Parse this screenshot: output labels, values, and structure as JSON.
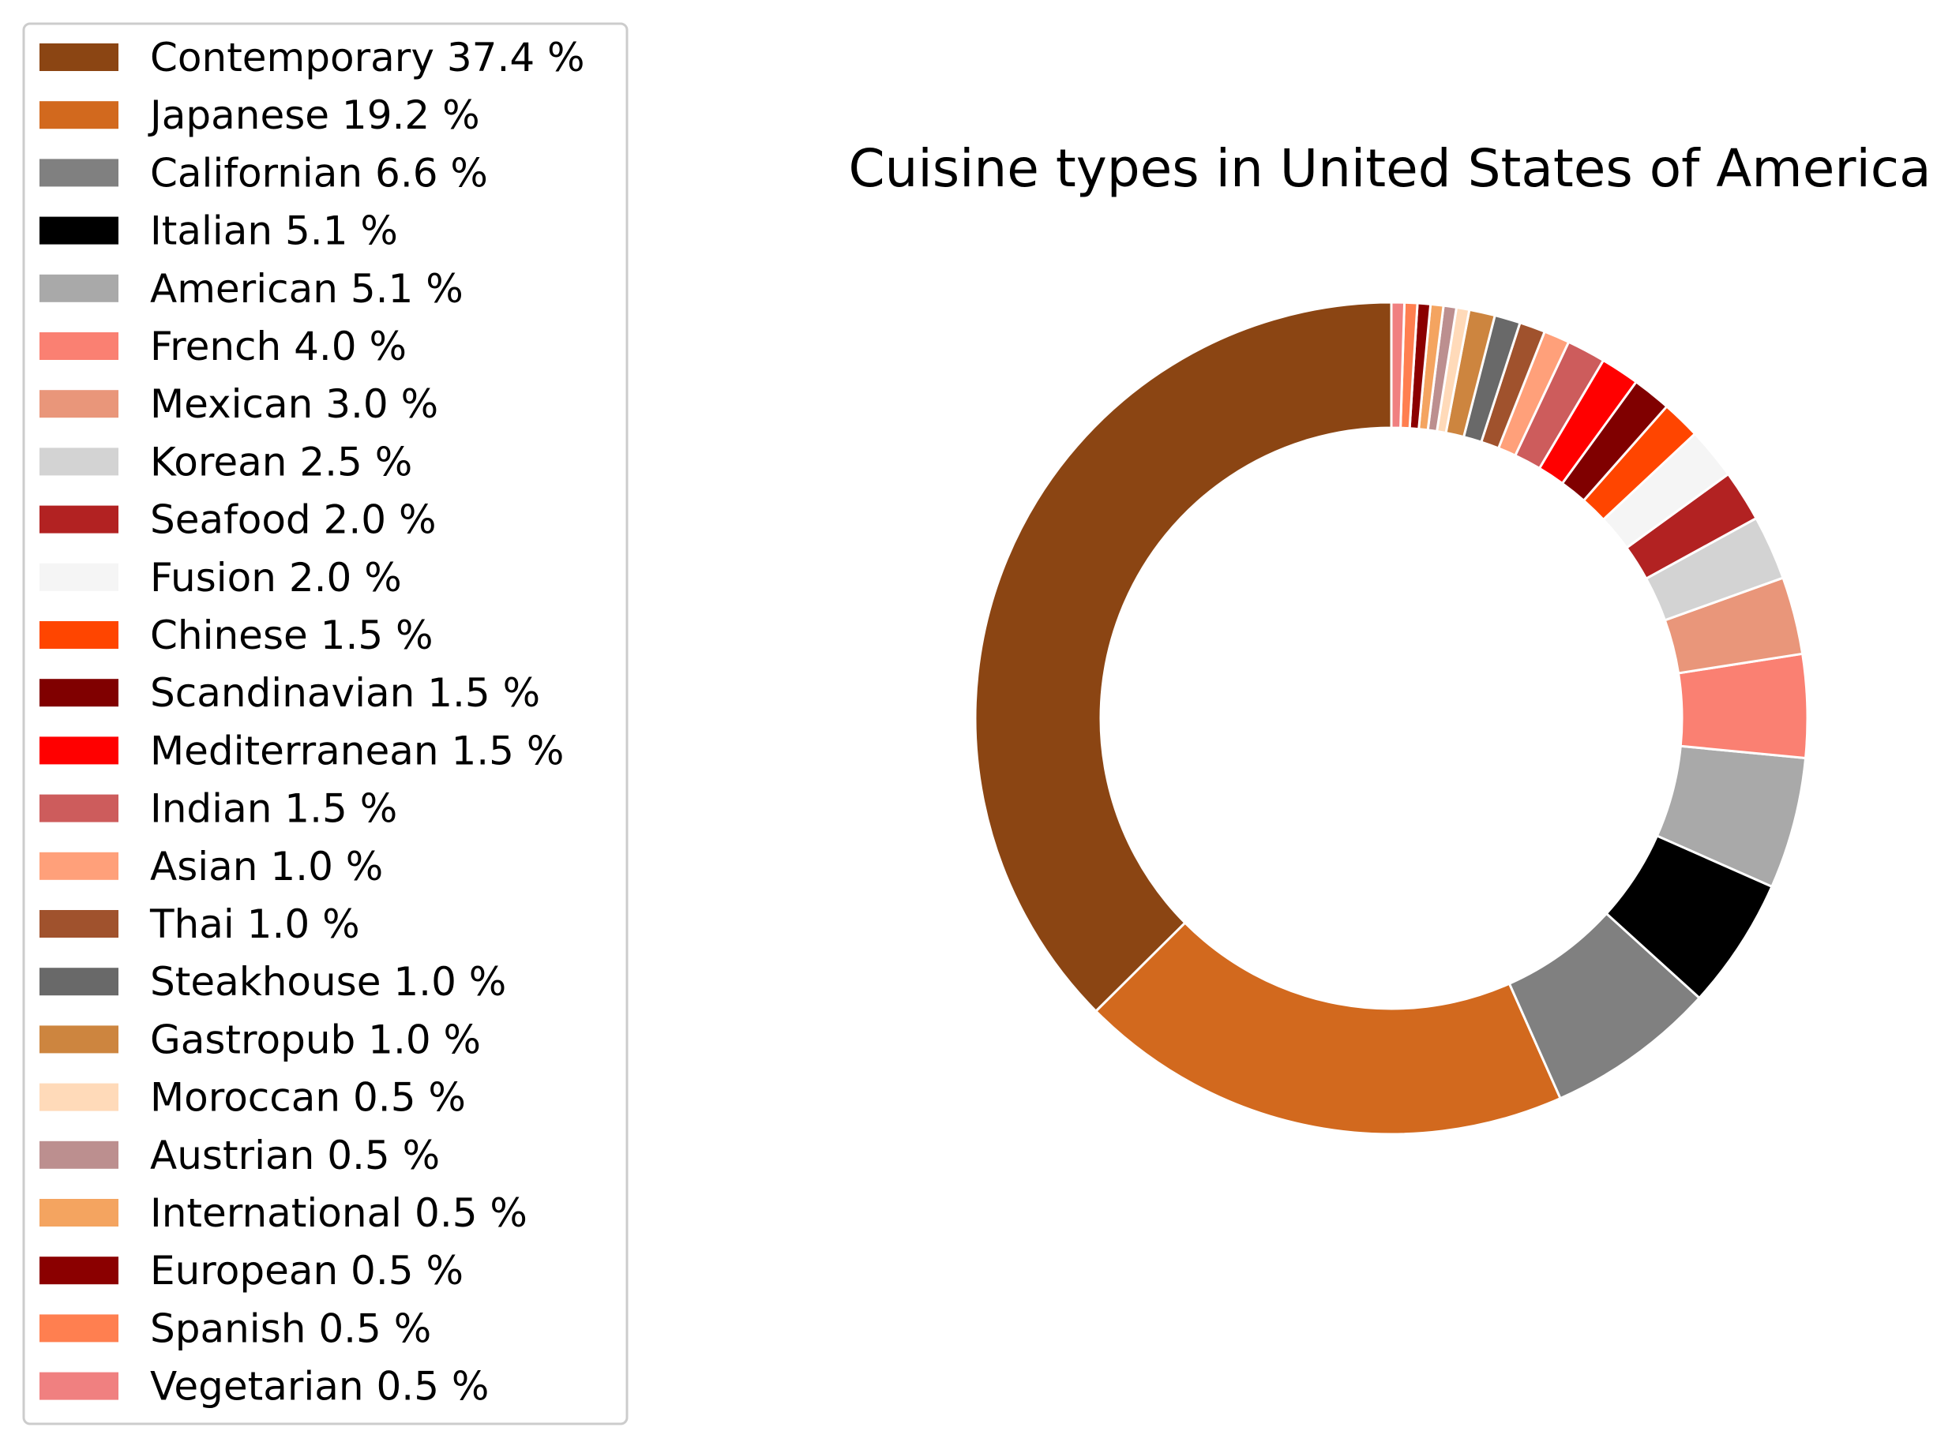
{
  "chart_data": {
    "type": "pie",
    "variant": "donut",
    "title": "Cuisine types in United States of America",
    "legend_position": "left",
    "start_angle": 90,
    "direction": "counterclockwise",
    "slices": [
      {
        "label": "Contemporary",
        "value": 37.4,
        "color": "#8B4513"
      },
      {
        "label": "Japanese",
        "value": 19.2,
        "color": "#D2691E"
      },
      {
        "label": "Californian",
        "value": 6.6,
        "color": "#808080"
      },
      {
        "label": "Italian",
        "value": 5.1,
        "color": "#000000"
      },
      {
        "label": "American",
        "value": 5.1,
        "color": "#A9A9A9"
      },
      {
        "label": "French",
        "value": 4.0,
        "color": "#FA8072"
      },
      {
        "label": "Mexican",
        "value": 3.0,
        "color": "#E9967A"
      },
      {
        "label": "Korean",
        "value": 2.5,
        "color": "#D3D3D3"
      },
      {
        "label": "Seafood",
        "value": 2.0,
        "color": "#B22222"
      },
      {
        "label": "Fusion",
        "value": 2.0,
        "color": "#F5F5F5"
      },
      {
        "label": "Chinese",
        "value": 1.5,
        "color": "#FF4500"
      },
      {
        "label": "Scandinavian",
        "value": 1.5,
        "color": "#800000"
      },
      {
        "label": "Mediterranean",
        "value": 1.5,
        "color": "#FF0000"
      },
      {
        "label": "Indian",
        "value": 1.5,
        "color": "#CD5C5C"
      },
      {
        "label": "Asian",
        "value": 1.0,
        "color": "#FFA07A"
      },
      {
        "label": "Thai",
        "value": 1.0,
        "color": "#A0522D"
      },
      {
        "label": "Steakhouse",
        "value": 1.0,
        "color": "#696969"
      },
      {
        "label": "Gastropub",
        "value": 1.0,
        "color": "#CD853F"
      },
      {
        "label": "Moroccan",
        "value": 0.5,
        "color": "#FFDAB9"
      },
      {
        "label": "Austrian",
        "value": 0.5,
        "color": "#BC8F8F"
      },
      {
        "label": "International",
        "value": 0.5,
        "color": "#F4A460"
      },
      {
        "label": "European",
        "value": 0.5,
        "color": "#8B0000"
      },
      {
        "label": "Spanish",
        "value": 0.5,
        "color": "#FF7F50"
      },
      {
        "label": "Vegetarian",
        "value": 0.5,
        "color": "#F08080"
      }
    ]
  }
}
